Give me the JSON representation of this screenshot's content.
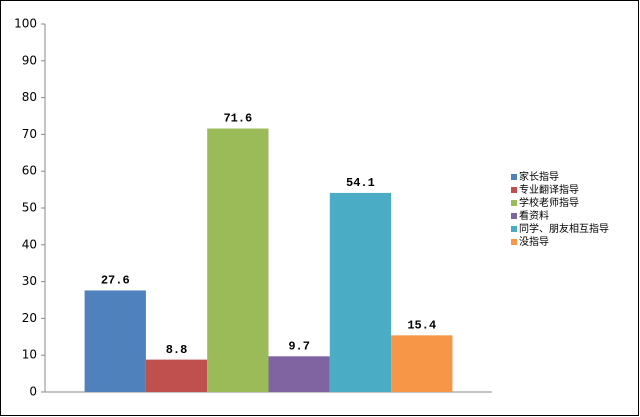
{
  "chart_data": {
    "type": "bar",
    "categories": [
      null
    ],
    "series": [
      {
        "name": "家长指导",
        "color": "#4f81bd",
        "values": [
          27.6
        ]
      },
      {
        "name": "专业翻译指导",
        "color": "#c0504d",
        "values": [
          8.8
        ]
      },
      {
        "name": "学校老师指导",
        "color": "#9bbb59",
        "values": [
          71.6
        ]
      },
      {
        "name": "看资料",
        "color": "#8064a2",
        "values": [
          9.7
        ]
      },
      {
        "name": "同学、朋友相互指导",
        "color": "#4bacc6",
        "values": [
          54.1
        ]
      },
      {
        "name": "没指导",
        "color": "#f79646",
        "values": [
          15.4
        ]
      }
    ],
    "ylim": [
      0,
      100
    ],
    "yticks": [
      0,
      10,
      20,
      30,
      40,
      50,
      60,
      70,
      80,
      90,
      100
    ],
    "grid": false,
    "legend": "right"
  }
}
